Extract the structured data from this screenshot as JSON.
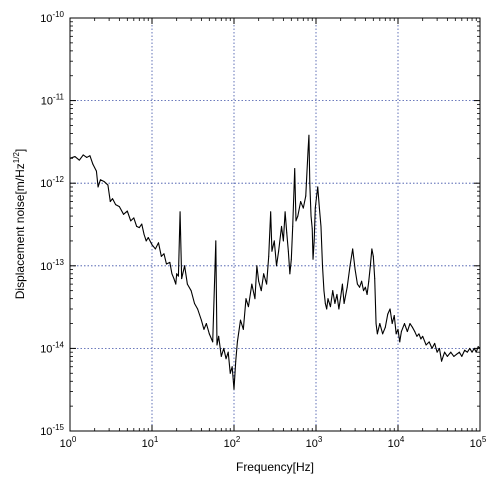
{
  "chart_data": {
    "type": "line",
    "title": "",
    "xlabel": "Frequency[Hz]",
    "ylabel_main": "Displacement noise[m/Hz",
    "ylabel_sup": "1/2",
    "ylabel_end": "]",
    "xscale": "log",
    "yscale": "log",
    "xlim": [
      1,
      100000
    ],
    "ylim": [
      1e-15,
      1e-10
    ],
    "grid": true,
    "x_ticks": [
      {
        "value": 1,
        "base": "10",
        "exp": "0"
      },
      {
        "value": 10,
        "base": "10",
        "exp": "1"
      },
      {
        "value": 100,
        "base": "10",
        "exp": "2"
      },
      {
        "value": 1000,
        "base": "10",
        "exp": "3"
      },
      {
        "value": 10000,
        "base": "10",
        "exp": "4"
      },
      {
        "value": 100000,
        "base": "10",
        "exp": "5"
      }
    ],
    "y_ticks": [
      {
        "value": 1e-15,
        "base": "10",
        "exp": "-15"
      },
      {
        "value": 1e-14,
        "base": "10",
        "exp": "-14"
      },
      {
        "value": 1e-13,
        "base": "10",
        "exp": "-13"
      },
      {
        "value": 1e-12,
        "base": "10",
        "exp": "-12"
      },
      {
        "value": 1e-11,
        "base": "10",
        "exp": "-11"
      },
      {
        "value": 1e-10,
        "base": "10",
        "exp": "-10"
      }
    ],
    "series": [
      {
        "color": "#000000",
        "points": [
          [
            1.0,
            2e-12
          ],
          [
            1.15,
            2.1e-12
          ],
          [
            1.3,
            1.9e-12
          ],
          [
            1.45,
            2.2e-12
          ],
          [
            1.6,
            2.05e-12
          ],
          [
            1.75,
            2.15e-12
          ],
          [
            1.9,
            1.7e-12
          ],
          [
            2.1,
            1.4e-12
          ],
          [
            2.2,
            9e-13
          ],
          [
            2.35,
            1.1e-12
          ],
          [
            2.6,
            1.05e-12
          ],
          [
            2.9,
            9.5e-13
          ],
          [
            3.1,
            6e-13
          ],
          [
            3.3,
            6.5e-13
          ],
          [
            3.6,
            5.5e-13
          ],
          [
            4.0,
            5.2e-13
          ],
          [
            4.5,
            4.2e-13
          ],
          [
            5.0,
            4.6e-13
          ],
          [
            5.5,
            3.5e-13
          ],
          [
            6.0,
            3.8e-13
          ],
          [
            6.5,
            3e-13
          ],
          [
            7.0,
            2.9e-13
          ],
          [
            7.5,
            3.2e-13
          ],
          [
            8.0,
            2.4e-13
          ],
          [
            8.5,
            2e-13
          ],
          [
            9.0,
            2.2e-13
          ],
          [
            10.0,
            1.8e-13
          ],
          [
            11.0,
            1.6e-13
          ],
          [
            12.0,
            1.9e-13
          ],
          [
            13.0,
            1.3e-13
          ],
          [
            14.0,
            1.4e-13
          ],
          [
            15.0,
            1.05e-13
          ],
          [
            16.5,
            1.1e-13
          ],
          [
            17.5,
            8e-14
          ],
          [
            18.5,
            7e-14
          ],
          [
            19.5,
            6e-14
          ],
          [
            20.0,
            8e-14
          ],
          [
            21.0,
            7.5e-14
          ],
          [
            22.0,
            4.5e-13
          ],
          [
            23.0,
            7e-14
          ],
          [
            25.0,
            1e-13
          ],
          [
            27.0,
            6e-14
          ],
          [
            30.0,
            5e-14
          ],
          [
            33.0,
            3.5e-14
          ],
          [
            36.0,
            3e-14
          ],
          [
            40.0,
            2.2e-14
          ],
          [
            43.0,
            1.7e-14
          ],
          [
            46.0,
            2e-14
          ],
          [
            50.0,
            1.5e-14
          ],
          [
            55.0,
            1.2e-14
          ],
          [
            60.0,
            2e-13
          ],
          [
            62.0,
            1.1e-14
          ],
          [
            65.0,
            1.4e-14
          ],
          [
            70.0,
            8e-15
          ],
          [
            75.0,
            1e-14
          ],
          [
            80.0,
            7.5e-15
          ],
          [
            85.0,
            9e-15
          ],
          [
            90.0,
            5e-15
          ],
          [
            95.0,
            6e-15
          ],
          [
            100.0,
            3.2e-15
          ],
          [
            105.0,
            7e-15
          ],
          [
            110.0,
            1.2e-14
          ],
          [
            120.0,
            2.2e-14
          ],
          [
            130.0,
            1.7e-14
          ],
          [
            140.0,
            4e-14
          ],
          [
            150.0,
            3.2e-14
          ],
          [
            165.0,
            6e-14
          ],
          [
            180.0,
            4e-14
          ],
          [
            190.0,
            1e-13
          ],
          [
            200.0,
            6.5e-14
          ],
          [
            215.0,
            5e-14
          ],
          [
            230.0,
            8e-14
          ],
          [
            250.0,
            6e-14
          ],
          [
            265.0,
            1.3e-13
          ],
          [
            280.0,
            4.5e-13
          ],
          [
            290.0,
            1.5e-13
          ],
          [
            310.0,
            2e-13
          ],
          [
            330.0,
            1e-13
          ],
          [
            350.0,
            1.5e-13
          ],
          [
            380.0,
            3e-13
          ],
          [
            400.0,
            2e-13
          ],
          [
            420.0,
            4.5e-13
          ],
          [
            440.0,
            2.5e-13
          ],
          [
            460.0,
            1.5e-13
          ],
          [
            480.0,
            8e-14
          ],
          [
            500.0,
            1.2e-13
          ],
          [
            520.0,
            3e-13
          ],
          [
            550.0,
            1.5e-12
          ],
          [
            570.0,
            3.5e-13
          ],
          [
            600.0,
            4e-13
          ],
          [
            650.0,
            6e-13
          ],
          [
            700.0,
            5e-13
          ],
          [
            750.0,
            7e-13
          ],
          [
            800.0,
            2.5e-12
          ],
          [
            820.0,
            3.8e-12
          ],
          [
            840.0,
            1e-12
          ],
          [
            870.0,
            4e-13
          ],
          [
            900.0,
            2.8e-13
          ],
          [
            920.0,
            1.2e-13
          ],
          [
            950.0,
            2e-13
          ],
          [
            980.0,
            5e-13
          ],
          [
            1000.0,
            6e-13
          ],
          [
            1050.0,
            9e-13
          ],
          [
            1100.0,
            5e-13
          ],
          [
            1150.0,
            3e-13
          ],
          [
            1200.0,
            1e-13
          ],
          [
            1250.0,
            5e-14
          ],
          [
            1300.0,
            3.5e-14
          ],
          [
            1350.0,
            3e-14
          ],
          [
            1400.0,
            4e-14
          ],
          [
            1500.0,
            3.2e-14
          ],
          [
            1600.0,
            5e-14
          ],
          [
            1700.0,
            3.5e-14
          ],
          [
            1800.0,
            4.5e-14
          ],
          [
            1900.0,
            3e-14
          ],
          [
            2000.0,
            4.2e-14
          ],
          [
            2100.0,
            6e-14
          ],
          [
            2200.0,
            3.5e-14
          ],
          [
            2400.0,
            5.5e-14
          ],
          [
            2600.0,
            1e-13
          ],
          [
            2800.0,
            1.6e-13
          ],
          [
            3000.0,
            9e-14
          ],
          [
            3200.0,
            6e-14
          ],
          [
            3400.0,
            5.5e-14
          ],
          [
            3600.0,
            6.5e-14
          ],
          [
            3800.0,
            5e-14
          ],
          [
            4000.0,
            5.5e-14
          ],
          [
            4200.0,
            4.5e-14
          ],
          [
            4400.0,
            6.5e-14
          ],
          [
            4600.0,
            1e-13
          ],
          [
            4800.0,
            1.6e-13
          ],
          [
            5000.0,
            1.3e-13
          ],
          [
            5200.0,
            7e-14
          ],
          [
            5400.0,
            2e-14
          ],
          [
            5600.0,
            1.5e-14
          ],
          [
            6000.0,
            2e-14
          ],
          [
            6500.0,
            1.5e-14
          ],
          [
            7000.0,
            1.8e-14
          ],
          [
            7500.0,
            2.6e-14
          ],
          [
            8000.0,
            3e-14
          ],
          [
            8500.0,
            2e-14
          ],
          [
            9000.0,
            2.5e-14
          ],
          [
            9500.0,
            1.5e-14
          ],
          [
            10000.0,
            1.7e-14
          ],
          [
            10500.0,
            1.2e-14
          ],
          [
            11000.0,
            1.6e-14
          ],
          [
            12000.0,
            2e-14
          ],
          [
            13000.0,
            1.6e-14
          ],
          [
            14000.0,
            2e-14
          ],
          [
            15000.0,
            1.8e-14
          ],
          [
            16000.0,
            1.6e-14
          ],
          [
            17000.0,
            1.4e-14
          ],
          [
            18000.0,
            1.5e-14
          ],
          [
            19000.0,
            1.3e-14
          ],
          [
            20000.0,
            1.4e-14
          ],
          [
            22000.0,
            1.1e-14
          ],
          [
            24000.0,
            1.2e-14
          ],
          [
            26000.0,
            1e-14
          ],
          [
            28000.0,
            1.15e-14
          ],
          [
            30000.0,
            9e-15
          ],
          [
            32000.0,
            1e-14
          ],
          [
            34000.0,
            7e-15
          ],
          [
            37000.0,
            9e-15
          ],
          [
            40000.0,
            8e-15
          ],
          [
            44000.0,
            9e-15
          ],
          [
            48000.0,
            8e-15
          ],
          [
            52000.0,
            8.5e-15
          ],
          [
            56000.0,
            9e-15
          ],
          [
            60000.0,
            8e-15
          ],
          [
            65000.0,
            9.5e-15
          ],
          [
            70000.0,
            9e-15
          ],
          [
            75000.0,
            1e-14
          ],
          [
            80000.0,
            9e-15
          ],
          [
            85000.0,
            1e-14
          ],
          [
            90000.0,
            9e-15
          ],
          [
            95000.0,
            1.05e-14
          ],
          [
            100000.0,
            1e-14
          ]
        ]
      }
    ]
  }
}
